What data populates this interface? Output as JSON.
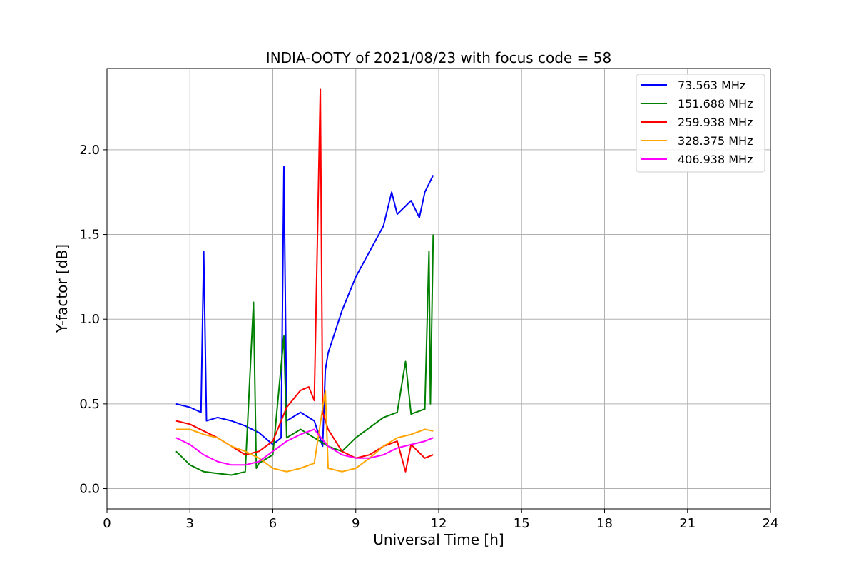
{
  "chart_data": {
    "type": "line",
    "title": "INDIA-OOTY of 2021/08/23 with focus code = 58",
    "xlabel": "Universal Time [h]",
    "ylabel": "Y-factor [dB]",
    "xlim": [
      0,
      24
    ],
    "ylim": [
      -0.12,
      2.48
    ],
    "xticks": [
      0,
      3,
      6,
      9,
      12,
      15,
      18,
      21,
      24
    ],
    "yticks": [
      0.0,
      0.5,
      1.0,
      1.5,
      2.0
    ],
    "xtick_labels": [
      "0",
      "3",
      "6",
      "9",
      "12",
      "15",
      "18",
      "21",
      "24"
    ],
    "ytick_labels": [
      "0.0",
      "0.5",
      "1.0",
      "1.5",
      "2.0"
    ],
    "grid": true,
    "legend_position": "top-right",
    "series": [
      {
        "name": " 73.563 MHz",
        "color": "#0000ff",
        "x": [
          2.5,
          3.0,
          3.4,
          3.5,
          3.6,
          4.0,
          4.5,
          5.0,
          5.5,
          6.0,
          6.3,
          6.4,
          6.5,
          7.0,
          7.5,
          7.8,
          7.9,
          8.0,
          8.5,
          9.0,
          9.5,
          10.0,
          10.3,
          10.5,
          11.0,
          11.3,
          11.5,
          11.8
        ],
        "y": [
          0.5,
          0.48,
          0.45,
          1.4,
          0.4,
          0.42,
          0.4,
          0.37,
          0.33,
          0.26,
          0.3,
          1.9,
          0.4,
          0.45,
          0.4,
          0.25,
          0.7,
          0.8,
          1.05,
          1.25,
          1.4,
          1.55,
          1.75,
          1.62,
          1.7,
          1.6,
          1.75,
          1.85
        ]
      },
      {
        "name": "151.688 MHz",
        "color": "#008000",
        "x": [
          2.5,
          3.0,
          3.5,
          4.0,
          4.5,
          5.0,
          5.3,
          5.4,
          5.5,
          6.0,
          6.4,
          6.5,
          7.0,
          7.5,
          8.0,
          8.5,
          9.0,
          9.5,
          10.0,
          10.5,
          10.8,
          11.0,
          11.5,
          11.65,
          11.7,
          11.8
        ],
        "y": [
          0.22,
          0.14,
          0.1,
          0.09,
          0.08,
          0.1,
          1.1,
          0.12,
          0.15,
          0.2,
          0.9,
          0.3,
          0.35,
          0.3,
          0.25,
          0.22,
          0.3,
          0.36,
          0.42,
          0.45,
          0.75,
          0.44,
          0.47,
          1.4,
          0.5,
          1.5
        ]
      },
      {
        "name": "259.938 MHz",
        "color": "#ff0000",
        "x": [
          2.5,
          3.0,
          3.5,
          4.0,
          4.5,
          5.0,
          5.5,
          6.0,
          6.5,
          7.0,
          7.3,
          7.5,
          7.72,
          7.8,
          8.0,
          8.5,
          9.0,
          9.5,
          10.0,
          10.5,
          10.8,
          11.0,
          11.5,
          11.8
        ],
        "y": [
          0.4,
          0.38,
          0.34,
          0.3,
          0.25,
          0.2,
          0.22,
          0.28,
          0.48,
          0.58,
          0.6,
          0.52,
          2.36,
          0.45,
          0.35,
          0.22,
          0.18,
          0.2,
          0.25,
          0.28,
          0.1,
          0.26,
          0.18,
          0.2
        ]
      },
      {
        "name": "328.375 MHz",
        "color": "#ffa500",
        "x": [
          2.5,
          3.0,
          3.5,
          4.0,
          4.5,
          5.0,
          5.5,
          6.0,
          6.5,
          7.0,
          7.5,
          7.9,
          8.0,
          8.5,
          9.0,
          9.5,
          10.0,
          10.5,
          11.0,
          11.5,
          11.8
        ],
        "y": [
          0.35,
          0.35,
          0.32,
          0.3,
          0.25,
          0.22,
          0.18,
          0.12,
          0.1,
          0.12,
          0.15,
          0.58,
          0.12,
          0.1,
          0.12,
          0.18,
          0.25,
          0.3,
          0.32,
          0.35,
          0.34
        ]
      },
      {
        "name": "406.938 MHz",
        "color": "#ff00ff",
        "x": [
          2.5,
          3.0,
          3.5,
          4.0,
          4.5,
          5.0,
          5.5,
          6.0,
          6.5,
          7.0,
          7.5,
          8.0,
          8.5,
          9.0,
          9.5,
          10.0,
          10.5,
          11.0,
          11.5,
          11.8
        ],
        "y": [
          0.3,
          0.26,
          0.2,
          0.16,
          0.14,
          0.14,
          0.16,
          0.22,
          0.28,
          0.32,
          0.35,
          0.25,
          0.2,
          0.18,
          0.18,
          0.2,
          0.24,
          0.26,
          0.28,
          0.3
        ]
      }
    ]
  }
}
